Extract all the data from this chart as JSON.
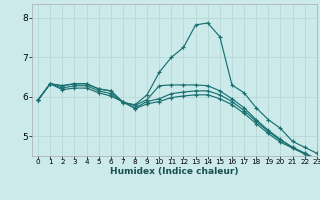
{
  "title": "",
  "xlabel": "Humidex (Indice chaleur)",
  "xlim": [
    -0.5,
    23
  ],
  "ylim": [
    4.5,
    8.35
  ],
  "yticks": [
    5,
    6,
    7,
    8
  ],
  "xticks": [
    0,
    1,
    2,
    3,
    4,
    5,
    6,
    7,
    8,
    9,
    10,
    11,
    12,
    13,
    14,
    15,
    16,
    17,
    18,
    19,
    20,
    21,
    22,
    23
  ],
  "bg_color": "#cceaea",
  "grid_color": "#b8d8d8",
  "line_color": "#1a7070",
  "curves": [
    {
      "x": [
        0,
        1,
        2,
        3,
        4,
        5,
        6,
        7,
        8,
        9,
        10,
        11,
        12,
        13,
        14,
        15,
        16,
        17,
        18,
        19,
        20,
        21,
        22,
        23
      ],
      "y": [
        5.92,
        6.33,
        6.28,
        6.33,
        6.33,
        6.2,
        6.15,
        5.85,
        5.8,
        6.05,
        6.62,
        7.0,
        7.25,
        7.82,
        7.87,
        7.52,
        6.3,
        6.1,
        5.72,
        5.42,
        5.2,
        4.87,
        4.72,
        4.57
      ]
    },
    {
      "x": [
        0,
        1,
        2,
        3,
        4,
        5,
        6,
        7,
        8,
        9,
        10,
        11,
        12,
        13,
        14,
        15,
        16,
        17,
        18,
        19,
        20,
        21,
        22,
        23
      ],
      "y": [
        5.92,
        6.33,
        6.28,
        6.33,
        6.33,
        6.2,
        6.15,
        5.87,
        5.78,
        5.93,
        6.28,
        6.3,
        6.3,
        6.3,
        6.28,
        6.15,
        5.95,
        5.72,
        5.42,
        5.15,
        4.92,
        4.72,
        4.57,
        4.42
      ]
    },
    {
      "x": [
        0,
        1,
        2,
        3,
        4,
        5,
        6,
        7,
        8,
        9,
        10,
        11,
        12,
        13,
        14,
        15,
        16,
        17,
        18,
        19,
        20,
        21,
        22,
        23
      ],
      "y": [
        5.92,
        6.33,
        6.22,
        6.28,
        6.28,
        6.15,
        6.08,
        5.87,
        5.72,
        5.88,
        5.95,
        6.08,
        6.12,
        6.15,
        6.15,
        6.05,
        5.88,
        5.65,
        5.38,
        5.12,
        4.9,
        4.72,
        4.57,
        4.42
      ]
    },
    {
      "x": [
        0,
        1,
        2,
        3,
        4,
        5,
        6,
        7,
        8,
        9,
        10,
        11,
        12,
        13,
        14,
        15,
        16,
        17,
        18,
        19,
        20,
        21,
        22,
        23
      ],
      "y": [
        5.92,
        6.33,
        6.18,
        6.22,
        6.22,
        6.1,
        6.02,
        5.87,
        5.7,
        5.82,
        5.88,
        5.98,
        6.02,
        6.05,
        6.05,
        5.95,
        5.8,
        5.58,
        5.32,
        5.07,
        4.85,
        4.7,
        4.55,
        4.42
      ]
    }
  ]
}
